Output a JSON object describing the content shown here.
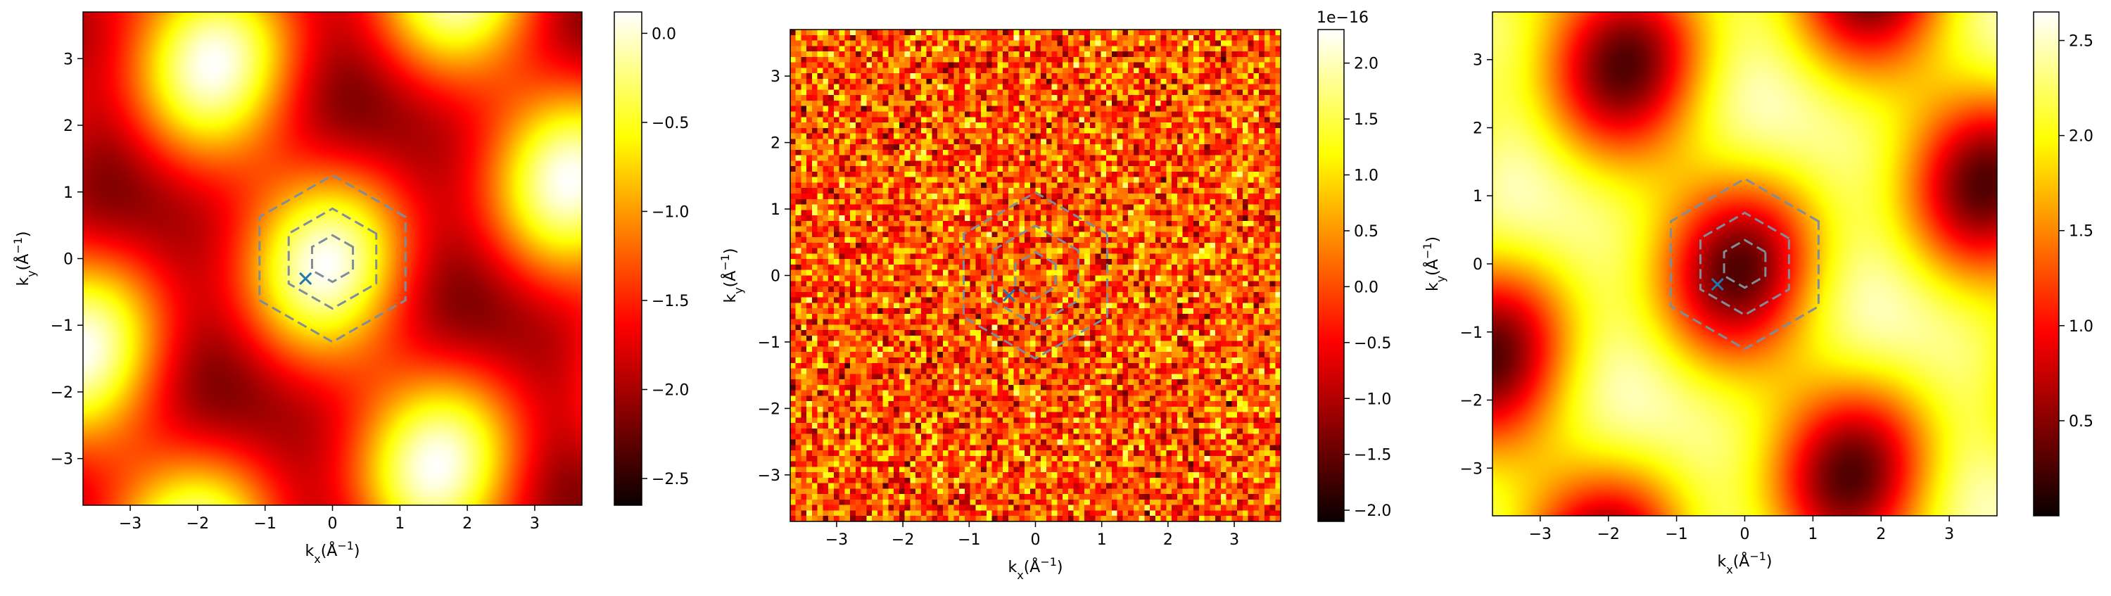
{
  "chart_data": [
    {
      "type": "heatmap",
      "title": "",
      "xlabel": "k_x(Å^-1)",
      "ylabel": "k_y(Å^-1)",
      "xlim": [
        -3.7,
        3.7
      ],
      "ylim": [
        -3.7,
        3.7
      ],
      "xticks": [
        -3,
        -2,
        -1,
        0,
        1,
        2,
        3
      ],
      "yticks": [
        -3,
        -2,
        -1,
        0,
        1,
        2,
        3
      ],
      "colormap": "hot",
      "colorbar": {
        "range": [
          -2.65,
          0.12
        ],
        "ticks": [
          -2.5,
          -2.0,
          -1.5,
          -1.0,
          -0.5,
          0.0
        ],
        "tick_labels": [
          "−2.5",
          "−2.0",
          "−1.5",
          "−1.0",
          "−0.5",
          "0.0"
        ],
        "offset_label": ""
      },
      "field": {
        "pattern": "cos-lattice-peaks",
        "peak_spacing_x": 2.1,
        "peak_spacing_y": 1.8,
        "noise": false
      },
      "overlays": {
        "hexagon_radii": [
          0.35,
          0.75,
          1.25
        ],
        "hexagon_color": "#7f8c9a",
        "marker": {
          "x": -0.4,
          "y": -0.3,
          "symbol": "x",
          "color": "#1f77b4"
        }
      },
      "grid": false
    },
    {
      "type": "heatmap",
      "title": "",
      "xlabel": "k_x(Å^-1)",
      "ylabel": "k_y(Å^-1)",
      "xlim": [
        -3.7,
        3.7
      ],
      "ylim": [
        -3.7,
        3.7
      ],
      "xticks": [
        -3,
        -2,
        -1,
        0,
        1,
        2,
        3
      ],
      "yticks": [
        -3,
        -2,
        -1,
        0,
        1,
        2,
        3
      ],
      "colormap": "hot",
      "colorbar": {
        "range": [
          -2.1e-16,
          2.3e-16
        ],
        "ticks": [
          -2.0,
          -1.5,
          -1.0,
          -0.5,
          0.0,
          0.5,
          1.0,
          1.5,
          2.0
        ],
        "tick_labels": [
          "−2.0",
          "−1.5",
          "−1.0",
          "−0.5",
          "0.0",
          "0.5",
          "1.0",
          "1.5",
          "2.0"
        ],
        "offset_label": "1e−16"
      },
      "field": {
        "pattern": "random-noise",
        "noise": true,
        "grid_cells": 90
      },
      "overlays": {
        "hexagon_radii": [
          0.35,
          0.75,
          1.25
        ],
        "hexagon_color": "#7f8c9a",
        "marker": {
          "x": -0.4,
          "y": -0.3,
          "symbol": "x",
          "color": "#1f77b4"
        }
      },
      "grid": false
    },
    {
      "type": "heatmap",
      "title": "",
      "xlabel": "k_x(Å^-1)",
      "ylabel": "k_y(Å^-1)",
      "xlim": [
        -3.7,
        3.7
      ],
      "ylim": [
        -3.7,
        3.7
      ],
      "xticks": [
        -3,
        -2,
        -1,
        0,
        1,
        2,
        3
      ],
      "yticks": [
        -3,
        -2,
        -1,
        0,
        1,
        2,
        3
      ],
      "colormap": "hot",
      "colorbar": {
        "range": [
          0.0,
          2.65
        ],
        "ticks": [
          0.5,
          1.0,
          1.5,
          2.0,
          2.5
        ],
        "tick_labels": [
          "0.5",
          "1.0",
          "1.5",
          "2.0",
          "2.5"
        ],
        "offset_label": ""
      },
      "field": {
        "pattern": "lattice-holes",
        "noise": false
      },
      "overlays": {
        "hexagon_radii": [
          0.35,
          0.75,
          1.25
        ],
        "hexagon_color": "#7f8c9a",
        "marker": {
          "x": -0.4,
          "y": -0.3,
          "symbol": "x",
          "color": "#1f77b4"
        }
      },
      "grid": false
    }
  ]
}
